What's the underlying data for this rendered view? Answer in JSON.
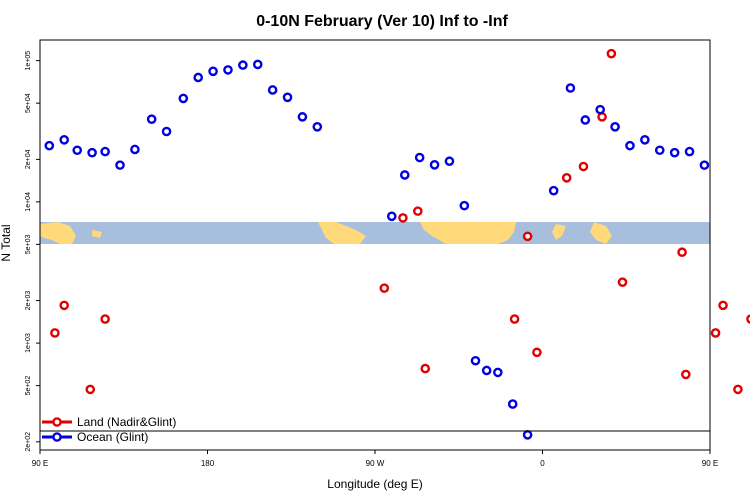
{
  "chart_data": {
    "type": "scatter",
    "title": "0-10N February (Ver 10)   Inf to -Inf",
    "xlabel": "Longitude (deg E)",
    "ylabel": "N Total",
    "x_scale": "linear",
    "y_scale": "log",
    "xlim": [
      90,
      450
    ],
    "ylim": [
      175,
      140000
    ],
    "x_ticks": [
      {
        "value": 90,
        "label": "90 E"
      },
      {
        "value": 180,
        "label": "180"
      },
      {
        "value": 270,
        "label": "90 W"
      },
      {
        "value": 360,
        "label": "0"
      },
      {
        "value": 450,
        "label": "90 E"
      },
      {
        "value": 540,
        "label": "180"
      }
    ],
    "y_ticks": [
      {
        "value": 200,
        "label": "2e+02"
      },
      {
        "value": 500,
        "label": "5e+02"
      },
      {
        "value": 1000,
        "label": "1e+03"
      },
      {
        "value": 2000,
        "label": "2e+03"
      },
      {
        "value": 5000,
        "label": "5e+03"
      },
      {
        "value": 10000,
        "label": "1e+04"
      },
      {
        "value": 20000,
        "label": "2e+04"
      },
      {
        "value": 50000,
        "label": "5e+04"
      },
      {
        "value": 100000,
        "label": "1e+05"
      }
    ],
    "legend_position": "bottom-left",
    "grid": false,
    "series": [
      {
        "name": "Land (Nadir&Glint)",
        "color": "#e00000",
        "points": [
          {
            "x": 98,
            "y": 1180
          },
          {
            "x": 103,
            "y": 1850
          },
          {
            "x": 117,
            "y": 470
          },
          {
            "x": 125,
            "y": 1480
          },
          {
            "x": 275,
            "y": 2450
          },
          {
            "x": 285,
            "y": 7700
          },
          {
            "x": 293,
            "y": 8600
          },
          {
            "x": 297,
            "y": 660
          },
          {
            "x": 345,
            "y": 1480
          },
          {
            "x": 352,
            "y": 5700
          },
          {
            "x": 357,
            "y": 860
          },
          {
            "x": 373,
            "y": 14800
          },
          {
            "x": 382,
            "y": 17800
          },
          {
            "x": 392,
            "y": 40000
          },
          {
            "x": 397,
            "y": 112000
          },
          {
            "x": 403,
            "y": 2700
          },
          {
            "x": 435,
            "y": 4400
          },
          {
            "x": 437,
            "y": 600
          },
          {
            "x": 453,
            "y": 1180
          },
          {
            "x": 457,
            "y": 1850
          },
          {
            "x": 465,
            "y": 470
          },
          {
            "x": 472,
            "y": 1480
          }
        ]
      },
      {
        "name": "Ocean (Glint)",
        "color": "#0000e0",
        "points": [
          {
            "x": 95,
            "y": 25000
          },
          {
            "x": 103,
            "y": 27500
          },
          {
            "x": 110,
            "y": 23200
          },
          {
            "x": 118,
            "y": 22300
          },
          {
            "x": 125,
            "y": 22700
          },
          {
            "x": 133,
            "y": 18200
          },
          {
            "x": 141,
            "y": 23500
          },
          {
            "x": 150,
            "y": 38500
          },
          {
            "x": 158,
            "y": 31500
          },
          {
            "x": 167,
            "y": 54000
          },
          {
            "x": 175,
            "y": 76000
          },
          {
            "x": 183,
            "y": 84000
          },
          {
            "x": 191,
            "y": 86000
          },
          {
            "x": 199,
            "y": 93000
          },
          {
            "x": 207,
            "y": 94000
          },
          {
            "x": 215,
            "y": 62000
          },
          {
            "x": 223,
            "y": 55000
          },
          {
            "x": 231,
            "y": 40000
          },
          {
            "x": 239,
            "y": 34000
          },
          {
            "x": 279,
            "y": 7900
          },
          {
            "x": 286,
            "y": 15500
          },
          {
            "x": 294,
            "y": 20600
          },
          {
            "x": 302,
            "y": 18300
          },
          {
            "x": 310,
            "y": 19400
          },
          {
            "x": 318,
            "y": 9400
          },
          {
            "x": 324,
            "y": 750
          },
          {
            "x": 330,
            "y": 640
          },
          {
            "x": 336,
            "y": 620
          },
          {
            "x": 344,
            "y": 370
          },
          {
            "x": 352,
            "y": 224
          },
          {
            "x": 366,
            "y": 12000
          },
          {
            "x": 375,
            "y": 64000
          },
          {
            "x": 383,
            "y": 38000
          },
          {
            "x": 391,
            "y": 45000
          },
          {
            "x": 399,
            "y": 34000
          },
          {
            "x": 407,
            "y": 25000
          },
          {
            "x": 415,
            "y": 27500
          },
          {
            "x": 423,
            "y": 23200
          },
          {
            "x": 431,
            "y": 22300
          },
          {
            "x": 439,
            "y": 22700
          },
          {
            "x": 447,
            "y": 18200
          }
        ]
      }
    ]
  }
}
